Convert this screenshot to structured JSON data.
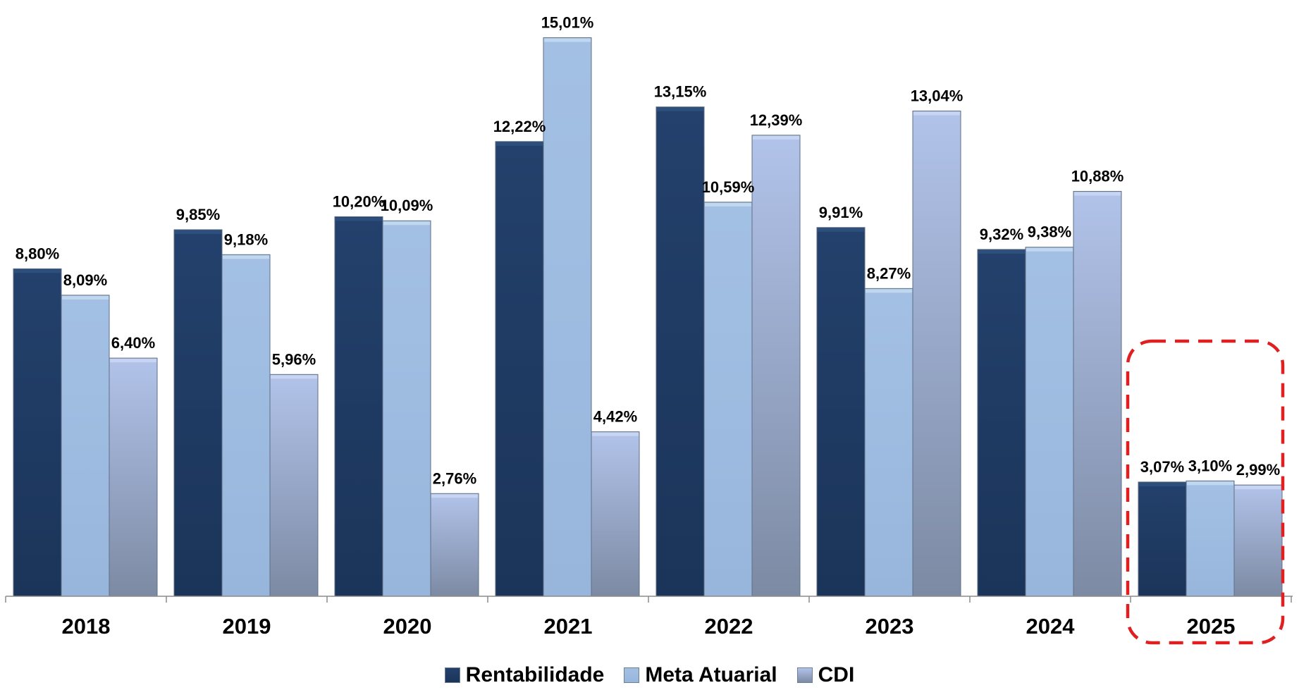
{
  "chart_data": {
    "type": "bar",
    "categories": [
      "2018",
      "2019",
      "2020",
      "2021",
      "2022",
      "2023",
      "2024",
      "2025"
    ],
    "series": [
      {
        "name": "Rentabilidade",
        "values": [
          8.8,
          9.85,
          10.2,
          12.22,
          13.15,
          9.91,
          9.32,
          3.07
        ],
        "labels": [
          "8,80%",
          "9,85%",
          "10,20%",
          "12,22%",
          "13,15%",
          "9,91%",
          "9,32%",
          "3,07%"
        ],
        "color": "#1f3a63"
      },
      {
        "name": "Meta Atuarial",
        "values": [
          8.09,
          9.18,
          10.09,
          15.01,
          10.59,
          8.27,
          9.38,
          3.1
        ],
        "labels": [
          "8,09%",
          "9,18%",
          "10,09%",
          "15,01%",
          "10,59%",
          "8,27%",
          "9,38%",
          "3,10%"
        ],
        "color": "#9dbbe0"
      },
      {
        "name": "CDI",
        "values": [
          6.4,
          5.96,
          2.76,
          4.42,
          12.39,
          13.04,
          10.88,
          2.99
        ],
        "labels": [
          "6,40%",
          "5,96%",
          "2,76%",
          "4,42%",
          "12,39%",
          "13,04%",
          "10,88%",
          "2,99%"
        ],
        "color": "#a9b8dc"
      }
    ],
    "xlabel": "",
    "ylabel": "",
    "ylim": [
      0,
      16
    ],
    "grid": false,
    "legend": "bottom-center",
    "highlight": {
      "category": "2025",
      "style": "dashed-rounded-box",
      "color": "#e02020"
    }
  }
}
